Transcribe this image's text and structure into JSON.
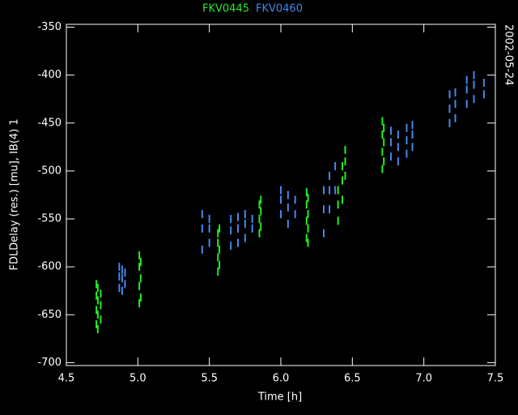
{
  "chart_data": {
    "type": "scatter",
    "x_label": "Time [h]",
    "y_label": "FDLDelay (res.) [mu], IB(4) 1",
    "date": "2002-05-24",
    "xlim": [
      4.5,
      7.5
    ],
    "xticks": [
      4.5,
      {
        "value": 5,
        "label": "5.0"
      },
      5.5,
      {
        "value": 6,
        "label": "6.0"
      },
      6.5,
      {
        "value": 7,
        "label": "7.0"
      },
      7.5
    ],
    "ylim": [
      -703,
      -347
    ],
    "yticks": [
      -700,
      -650,
      -600,
      -550,
      -500,
      -450,
      -400,
      -350
    ],
    "series": [
      {
        "name": "FKV0445",
        "color": "#22ee22",
        "x": [
          4.71,
          4.71,
          4.71,
          4.71,
          4.72,
          4.72,
          4.72,
          4.72,
          4.74,
          4.74,
          4.74,
          5.01,
          5.01,
          5.01,
          5.01,
          5.02,
          5.02,
          5.02,
          5.56,
          5.56,
          5.56,
          5.56,
          5.57,
          5.57,
          5.57,
          5.85,
          5.85,
          5.85,
          5.86,
          5.86,
          5.86,
          6.18,
          6.18,
          6.18,
          6.18,
          6.19,
          6.19,
          6.19,
          6.19,
          6.4,
          6.4,
          6.4,
          6.43,
          6.43,
          6.43,
          6.45,
          6.45,
          6.45,
          6.71,
          6.71,
          6.71,
          6.71,
          6.72,
          6.72,
          6.72
        ],
        "values": [
          -660,
          -645,
          -630,
          -618,
          -665,
          -650,
          -635,
          -622,
          -655,
          -640,
          -628,
          -638,
          -620,
          -600,
          -588,
          -632,
          -612,
          -595,
          -605,
          -590,
          -575,
          -565,
          -598,
          -582,
          -560,
          -565,
          -550,
          -535,
          -558,
          -542,
          -530,
          -570,
          -552,
          -535,
          -522,
          -575,
          -560,
          -545,
          -528,
          -552,
          -535,
          -520,
          -530,
          -510,
          -495,
          -505,
          -490,
          -478,
          -498,
          -480,
          -462,
          -448,
          -490,
          -470,
          -455
        ]
      },
      {
        "name": "FKV0460",
        "color": "#4488ee",
        "x": [
          4.87,
          4.87,
          4.87,
          4.89,
          4.89,
          4.89,
          4.91,
          4.91,
          5.45,
          5.45,
          5.45,
          5.5,
          5.5,
          5.5,
          5.65,
          5.65,
          5.65,
          5.7,
          5.7,
          5.7,
          5.75,
          5.75,
          5.75,
          5.8,
          5.8,
          6.0,
          6.0,
          6.0,
          6.05,
          6.05,
          6.05,
          6.1,
          6.1,
          6.3,
          6.3,
          6.3,
          6.34,
          6.34,
          6.34,
          6.38,
          6.38,
          6.77,
          6.77,
          6.77,
          6.82,
          6.82,
          6.82,
          6.88,
          6.88,
          6.88,
          6.92,
          6.92,
          6.92,
          7.18,
          7.18,
          7.18,
          7.22,
          7.22,
          7.22,
          7.3,
          7.3,
          7.3,
          7.35,
          7.35,
          7.35,
          7.42,
          7.42
        ],
        "values": [
          -622,
          -610,
          -600,
          -625,
          -612,
          -603,
          -618,
          -606,
          -582,
          -560,
          -545,
          -575,
          -560,
          -550,
          -578,
          -562,
          -550,
          -575,
          -560,
          -548,
          -570,
          -555,
          -545,
          -560,
          -550,
          -545,
          -530,
          -520,
          -555,
          -538,
          -525,
          -545,
          -530,
          -565,
          -540,
          -520,
          -540,
          -520,
          -505,
          -520,
          -495,
          -485,
          -470,
          -458,
          -490,
          -475,
          -462,
          -482,
          -468,
          -455,
          -475,
          -462,
          -452,
          -450,
          -435,
          -420,
          -445,
          -430,
          -418,
          -430,
          -415,
          -405,
          -425,
          -410,
          -400,
          -420,
          -408
        ]
      }
    ]
  }
}
